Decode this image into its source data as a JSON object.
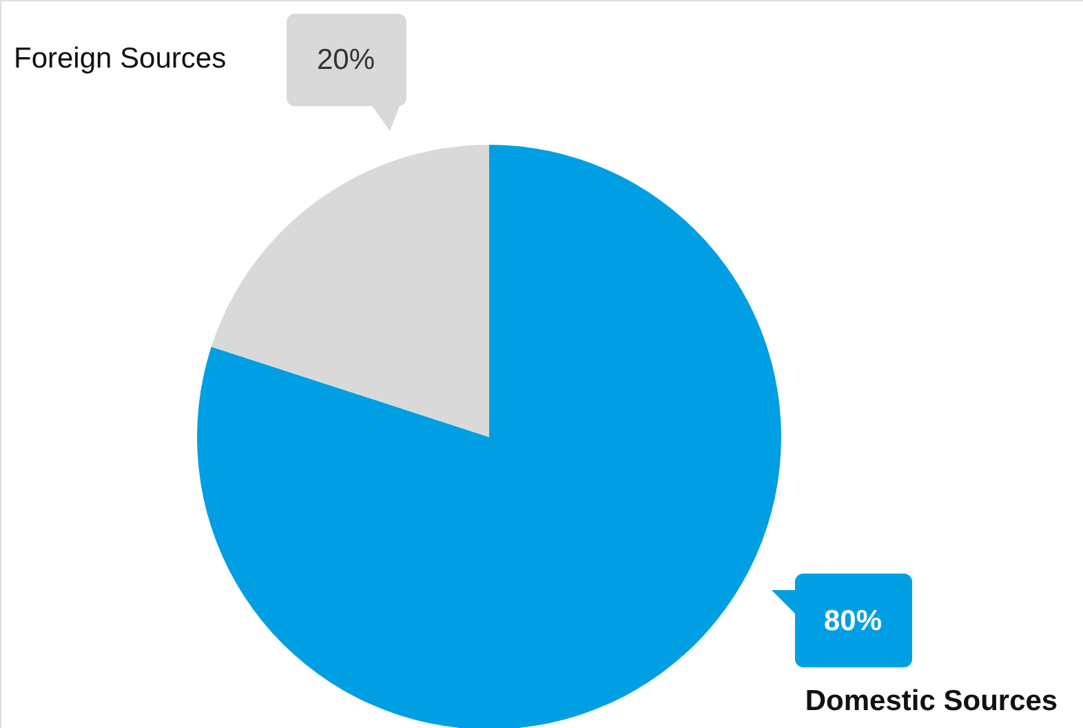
{
  "chart_data": {
    "type": "pie",
    "categories": [
      "Domestic Sources",
      "Foreign Sources"
    ],
    "values": [
      80,
      20
    ],
    "colors": [
      "#009fe3",
      "#d9d9d9"
    ],
    "value_labels": [
      "80%",
      "20%"
    ]
  }
}
